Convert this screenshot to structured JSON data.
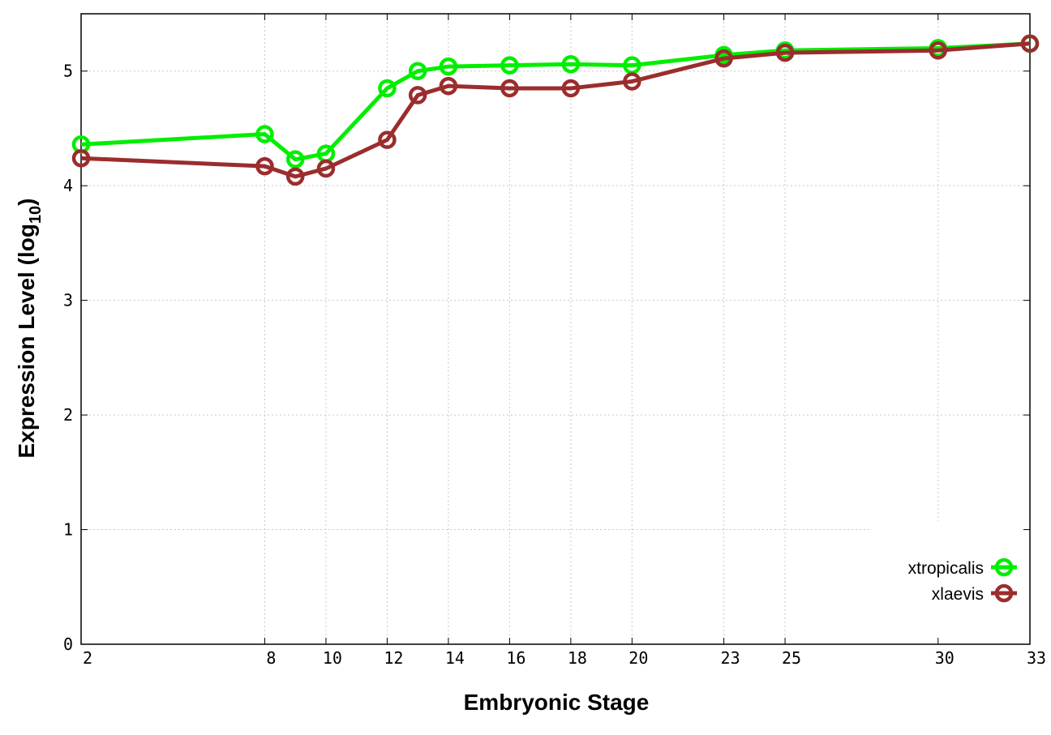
{
  "chart_data": {
    "type": "line",
    "title": "",
    "xlabel": "Embryonic Stage",
    "ylabel": "Expression Level (log",
    "ylabel_sub": "10",
    "ylabel_close": ")",
    "xlim": [
      2,
      33
    ],
    "ylim": [
      0,
      5.5
    ],
    "x_ticks": [
      2,
      8,
      10,
      12,
      14,
      16,
      18,
      20,
      23,
      25,
      30,
      33
    ],
    "x_tick_labels": [
      "2",
      "8",
      "10",
      "12",
      "14",
      "16",
      "18",
      "20",
      "23",
      "25",
      "30",
      "33"
    ],
    "y_ticks": [
      0,
      1,
      2,
      3,
      4,
      5
    ],
    "y_tick_labels": [
      "0",
      "1",
      "2",
      "3",
      "4",
      "5"
    ],
    "grid": true,
    "legend_position": "bottom-right",
    "x": [
      2,
      8,
      9,
      10,
      12,
      13,
      14,
      16,
      18,
      20,
      23,
      25,
      30,
      33
    ],
    "series": [
      {
        "name": "xtropicalis",
        "color": "#00ee00",
        "values": [
          4.36,
          4.45,
          4.23,
          4.28,
          4.85,
          5.0,
          5.04,
          5.05,
          5.06,
          5.05,
          5.14,
          5.18,
          5.2,
          5.24
        ]
      },
      {
        "name": "xlaevis",
        "color": "#9b2d2d",
        "values": [
          4.24,
          4.17,
          4.08,
          4.15,
          4.4,
          4.79,
          4.87,
          4.85,
          4.85,
          4.91,
          5.11,
          5.16,
          5.18,
          5.24
        ]
      }
    ]
  }
}
